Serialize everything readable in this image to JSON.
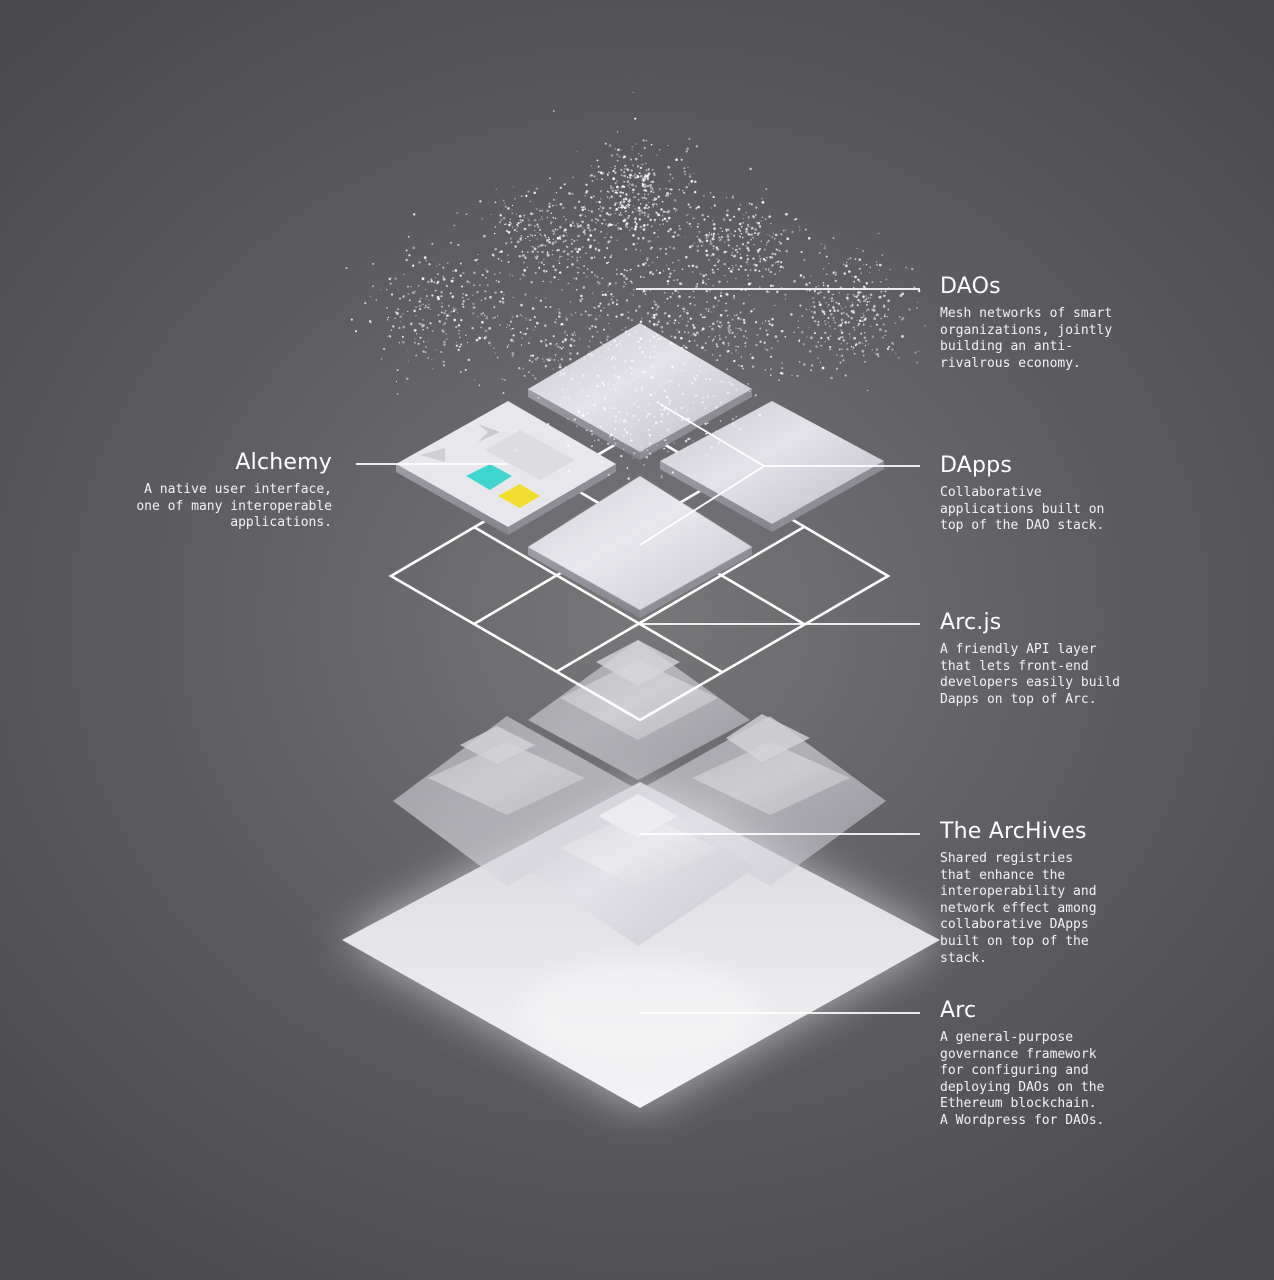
{
  "labels": {
    "daos": {
      "title": "DAOs",
      "description": "Mesh networks of smart\norganizations, jointly\nbuilding an anti-\nrivalrous economy."
    },
    "alchemy": {
      "title": "Alchemy",
      "description": "A native user interface,\none of many interoperable\napplications."
    },
    "dapps": {
      "title": "DApps",
      "description": "Collaborative\napplications built on\ntop of the DAO stack."
    },
    "arcjs": {
      "title": "Arc.js",
      "description": "A friendly API layer\nthat lets front-end\ndevelopers easily build\nDapps on top of Arc."
    },
    "archives": {
      "title": "The ArcHives",
      "description": "Shared registries\nthat enhance the\ninteroperability and\nnetwork effect among\ncollaborative DApps\nbuilt on top of the\nstack."
    },
    "arc": {
      "title": "Arc",
      "description": "A general-purpose\ngovernance framework\nfor configuring and\ndeploying DAOs on the\nEthereum blockchain.\nA Wordpress for DAOs."
    }
  },
  "colors": {
    "alchemy_accent_teal": "#3fd6cf",
    "alchemy_accent_yellow": "#f1dd2e"
  }
}
